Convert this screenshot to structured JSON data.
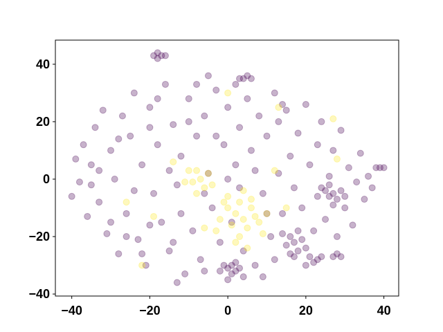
{
  "chart_data": {
    "type": "scatter",
    "xlim": [
      -44.2,
      43.8
    ],
    "ylim": [
      -40.7,
      48.4
    ],
    "xticks": [
      {
        "value": -40,
        "label": "−40"
      },
      {
        "value": -20,
        "label": "−20"
      },
      0,
      20,
      40
    ],
    "yticks": [
      {
        "value": -40,
        "label": "−40"
      },
      {
        "value": -20,
        "label": "−20"
      },
      0,
      20,
      40
    ],
    "alpha": 0.3,
    "series": [
      {
        "color": "#440154",
        "x": [
          -19,
          -18,
          -17,
          -18,
          -16,
          4,
          5,
          6,
          3,
          -5,
          0,
          1,
          2,
          -1,
          1,
          3,
          0,
          4,
          -2,
          2,
          16,
          17,
          18,
          15,
          19,
          17,
          14,
          20,
          16,
          18,
          21,
          23,
          22,
          24,
          25,
          26,
          27,
          24,
          28,
          26,
          29,
          23,
          27,
          30,
          28,
          29,
          27,
          39,
          40,
          38,
          -40,
          -39,
          -38,
          -37,
          -36,
          -35,
          -34,
          -33,
          -32,
          -31,
          -30,
          -29,
          -28,
          -27,
          -26,
          -25,
          -24,
          -23,
          -22,
          -21,
          -20,
          -19,
          -18,
          -17,
          -16,
          -15,
          -14,
          -13,
          -12,
          -11,
          -10,
          -9,
          -8,
          -7,
          -6,
          -5,
          -4,
          -3,
          -2,
          -1,
          0,
          1,
          2,
          3,
          4,
          5,
          6,
          7,
          8,
          9,
          10,
          11,
          12,
          13,
          14,
          15,
          16,
          17,
          18,
          19,
          20,
          21,
          22,
          23,
          24,
          25,
          26,
          27,
          28,
          29,
          30,
          31,
          32,
          33,
          34,
          35,
          36,
          37,
          -33,
          -28,
          -24,
          -20,
          -15,
          -12,
          -10,
          -6,
          -3,
          0,
          3,
          7,
          10,
          13,
          -26,
          -18,
          -8,
          2,
          12,
          20,
          -30,
          -35,
          -20,
          -14,
          -13,
          9,
          -22,
          14,
          -6
        ],
        "y": [
          43,
          44,
          43,
          42,
          43,
          35,
          36,
          35,
          35,
          36,
          -31,
          -30,
          -32,
          -30,
          -33,
          -31,
          -35,
          -34,
          -32,
          -29,
          -20,
          -22,
          -25,
          -23,
          -21,
          -27,
          -19,
          -24,
          -26,
          -18,
          -27,
          -28,
          -29,
          -27,
          -4,
          -6,
          -5,
          -3,
          -7,
          -2,
          -4,
          -6,
          -9,
          -6,
          -26,
          -27,
          -27,
          4,
          4,
          4,
          -6,
          7,
          -1,
          12,
          -13,
          5,
          18,
          -8,
          24,
          -19,
          10,
          0,
          -26,
          22,
          -12,
          15,
          30,
          -21,
          5,
          -30,
          25,
          -5,
          12,
          -15,
          33,
          -25,
          19,
          -2,
          8,
          -33,
          28,
          -18,
          15,
          -28,
          22,
          2,
          -10,
          31,
          -22,
          12,
          25,
          -15,
          5,
          18,
          -25,
          28,
          10,
          -30,
          22,
          -5,
          15,
          -20,
          30,
          2,
          -12,
          24,
          8,
          -3,
          16,
          -10,
          26,
          5,
          -18,
          12,
          20,
          -14,
          1,
          10,
          -20,
          17,
          -10,
          4,
          -16,
          -1,
          9,
          -7,
          1,
          -3,
          3,
          14,
          -4,
          -16,
          3,
          -12,
          20,
          -5,
          15,
          0,
          -3,
          3,
          -12,
          20,
          -20,
          28,
          33,
          33,
          -28,
          -30,
          -15,
          -2,
          18,
          -22,
          -36,
          -34,
          -26,
          26,
          -32
        ]
      },
      {
        "color": "#fde725",
        "x": [
          -8,
          -7,
          -6,
          -9,
          -5,
          -4,
          -8,
          0,
          2,
          4,
          6,
          -2,
          1,
          3,
          5,
          7,
          8,
          -1,
          3,
          5,
          -3,
          9,
          0,
          10,
          6,
          -10,
          -11,
          4,
          2,
          -22,
          -14,
          -19,
          13,
          27,
          28,
          0,
          -26,
          12,
          15,
          -6
        ],
        "y": [
          3,
          0,
          -3,
          -1,
          2,
          -2,
          -5,
          -10,
          -12,
          -14,
          -10,
          -14,
          -16,
          -8,
          -17,
          -13,
          -15,
          -8,
          -20,
          -24,
          -18,
          -19,
          -6,
          -12,
          -7,
          3,
          -1,
          -4,
          -22,
          -30,
          6,
          -13,
          25,
          21,
          7,
          30,
          -8,
          3,
          -10,
          -17
        ]
      }
    ]
  }
}
